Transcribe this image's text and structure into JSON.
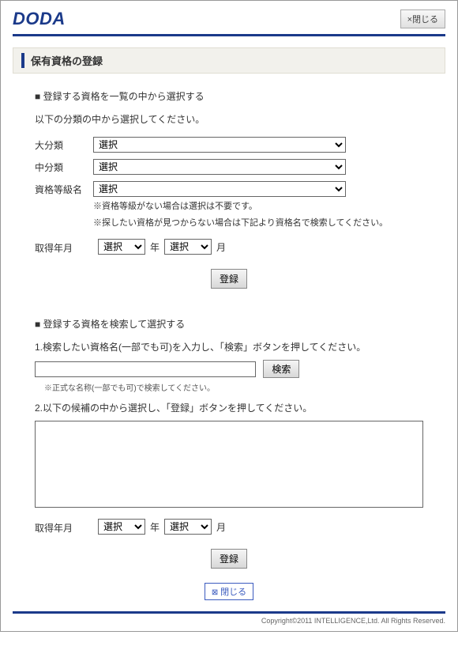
{
  "logo": "DODA",
  "close_top": "×閉じる",
  "page_title": "保有資格の登録",
  "section1": {
    "heading": "登録する資格を一覧の中から選択する",
    "desc": "以下の分類の中から選択してください。",
    "labels": {
      "major": "大分類",
      "middle": "中分類",
      "grade": "資格等級名",
      "date": "取得年月"
    },
    "select_placeholder": "選択",
    "notes": {
      "n1": "※資格等級がない場合は選択は不要です。",
      "n2": "※探したい資格が見つからない場合は下記より資格名で検索してください。"
    },
    "year_unit": "年",
    "month_unit": "月",
    "register_btn": "登録"
  },
  "section2": {
    "heading": "登録する資格を検索して選択する",
    "step1": "1.検索したい資格名(一部でも可)を入力し、「検索」ボタンを押してください。",
    "search_btn": "検索",
    "small_note": "※正式な名称(一部でも可)で検索してください。",
    "step2": "2.以下の候補の中から選択し、「登録」ボタンを押してください。",
    "date_label": "取得年月",
    "select_placeholder": "選択",
    "year_unit": "年",
    "month_unit": "月",
    "register_btn": "登録"
  },
  "close_bottom": "閉じる",
  "copyright": "Copyright©2011 INTELLIGENCE,Ltd. All Rights Reserved."
}
